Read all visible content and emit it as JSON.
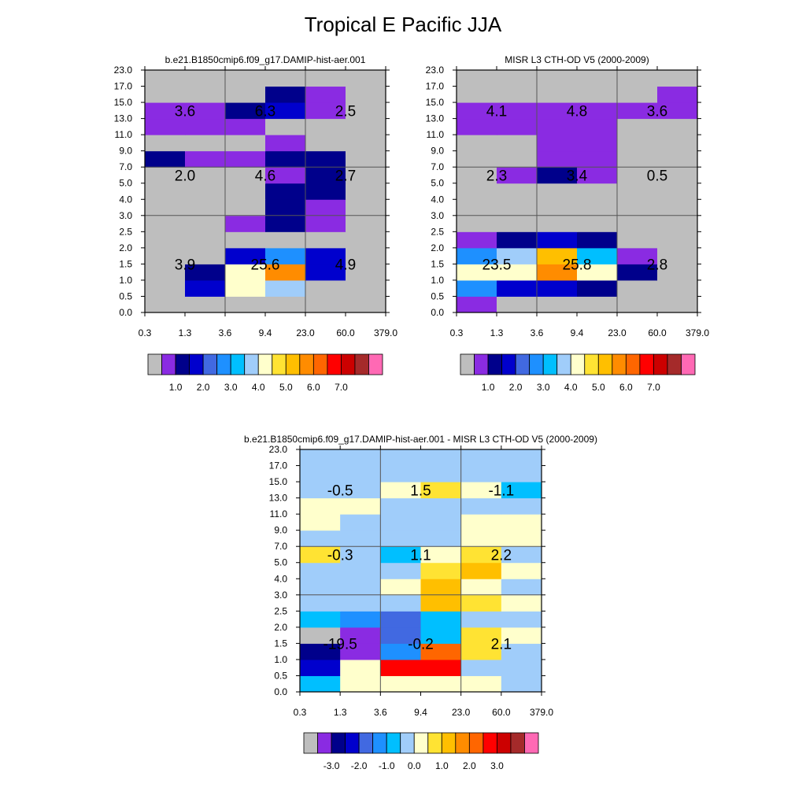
{
  "title": "Tropical E Pacific JJA",
  "palette": {
    "colors": [
      "#bebebe",
      "#8a2be2",
      "#00008b",
      "#0000cd",
      "#4169e1",
      "#1e90ff",
      "#00bfff",
      "#a0cdfa",
      "#ffffcc",
      "#ffe333",
      "#ffbf00",
      "#ff8c00",
      "#ff6600",
      "#ff0000",
      "#cc0000",
      "#a52a2a",
      "#ff69b4"
    ],
    "levels": [
      "0",
      "1",
      "2",
      "3",
      "4",
      "5",
      "6",
      "7",
      "8",
      "9",
      "10",
      "11",
      "12",
      "13",
      "14",
      "15",
      "16"
    ]
  },
  "chart_data": [
    {
      "type": "heatmap",
      "title": "b.e21.B1850cmip6.f09_g17.DAMIP-hist-aer.001",
      "x_ticks": [
        "0.3",
        "1.3",
        "3.6",
        "9.4",
        "23.0",
        "60.0",
        "379.0"
      ],
      "y_ticks": [
        "0.0",
        "0.5",
        "1.0",
        "1.5",
        "2.0",
        "2.5",
        "3.0",
        "4.0",
        "5.0",
        "7.0",
        "9.0",
        "11.0",
        "13.0",
        "15.0",
        "17.0",
        "23.0"
      ],
      "cell_color_index_rows_bottom_to_top": [
        [
          0,
          0,
          0,
          0,
          0,
          0
        ],
        [
          0,
          3,
          8,
          7,
          0,
          0
        ],
        [
          0,
          2,
          8,
          11,
          3,
          0
        ],
        [
          0,
          0,
          3,
          5,
          3,
          0
        ],
        [
          0,
          0,
          0,
          0,
          0,
          0
        ],
        [
          0,
          0,
          1,
          2,
          1,
          0
        ],
        [
          0,
          0,
          0,
          2,
          1,
          0
        ],
        [
          0,
          0,
          0,
          2,
          2,
          0
        ],
        [
          0,
          0,
          0,
          1,
          2,
          0
        ],
        [
          2,
          1,
          1,
          2,
          2,
          0
        ],
        [
          0,
          0,
          0,
          1,
          0,
          0
        ],
        [
          1,
          1,
          1,
          0,
          0,
          0
        ],
        [
          1,
          1,
          2,
          3,
          1,
          0
        ],
        [
          0,
          0,
          0,
          2,
          1,
          0
        ],
        [
          0,
          0,
          0,
          0,
          0,
          0
        ]
      ],
      "labels": [
        {
          "text": "3.6",
          "xi": 1,
          "yi": 12.5
        },
        {
          "text": "6.3",
          "xi": 3,
          "yi": 12.5
        },
        {
          "text": "2.5",
          "xi": 5,
          "yi": 12.5
        },
        {
          "text": "2.0",
          "xi": 1,
          "yi": 8.5
        },
        {
          "text": "4.6",
          "xi": 3,
          "yi": 8.5
        },
        {
          "text": "2.7",
          "xi": 5,
          "yi": 8.5
        },
        {
          "text": "3.9",
          "xi": 1,
          "yi": 3.0
        },
        {
          "text": "25.6",
          "xi": 3,
          "yi": 3.0
        },
        {
          "text": "4.9",
          "xi": 5,
          "yi": 3.0
        }
      ],
      "colorbar": {
        "tick_labels": [
          "1.0",
          "2.0",
          "3.0",
          "4.0",
          "5.0",
          "6.0",
          "7.0"
        ],
        "start_index": 2
      }
    },
    {
      "type": "heatmap",
      "title": "MISR L3 CTH-OD V5 (2000-2009)",
      "x_ticks": [
        "0.3",
        "1.3",
        "3.6",
        "9.4",
        "23.0",
        "60.0",
        "379.0"
      ],
      "y_ticks": [
        "0.0",
        "0.5",
        "1.0",
        "1.5",
        "2.0",
        "2.5",
        "3.0",
        "4.0",
        "5.0",
        "7.0",
        "9.0",
        "11.0",
        "13.0",
        "15.0",
        "17.0",
        "23.0"
      ],
      "cell_color_index_rows_bottom_to_top": [
        [
          1,
          0,
          0,
          0,
          0,
          0
        ],
        [
          5,
          3,
          3,
          2,
          0,
          0
        ],
        [
          8,
          8,
          11,
          8,
          2,
          0
        ],
        [
          5,
          7,
          10,
          6,
          1,
          0
        ],
        [
          1,
          2,
          3,
          2,
          0,
          0
        ],
        [
          0,
          0,
          0,
          0,
          0,
          0
        ],
        [
          0,
          0,
          0,
          0,
          0,
          0
        ],
        [
          0,
          0,
          0,
          0,
          0,
          0
        ],
        [
          0,
          1,
          2,
          1,
          0,
          0
        ],
        [
          0,
          0,
          1,
          1,
          0,
          0
        ],
        [
          0,
          0,
          1,
          1,
          0,
          0
        ],
        [
          1,
          1,
          1,
          1,
          0,
          0
        ],
        [
          1,
          1,
          1,
          1,
          1,
          1
        ],
        [
          0,
          0,
          0,
          0,
          0,
          1
        ],
        [
          0,
          0,
          0,
          0,
          0,
          0
        ]
      ],
      "labels": [
        {
          "text": "4.1",
          "xi": 1,
          "yi": 12.5
        },
        {
          "text": "4.8",
          "xi": 3,
          "yi": 12.5
        },
        {
          "text": "3.6",
          "xi": 5,
          "yi": 12.5
        },
        {
          "text": "2.3",
          "xi": 1,
          "yi": 8.5
        },
        {
          "text": "3.4",
          "xi": 3,
          "yi": 8.5
        },
        {
          "text": "0.5",
          "xi": 5,
          "yi": 8.5
        },
        {
          "text": "23.5",
          "xi": 1,
          "yi": 3.0
        },
        {
          "text": "25.8",
          "xi": 3,
          "yi": 3.0
        },
        {
          "text": "2.8",
          "xi": 5,
          "yi": 3.0
        }
      ],
      "colorbar": {
        "tick_labels": [
          "1.0",
          "2.0",
          "3.0",
          "4.0",
          "5.0",
          "6.0",
          "7.0"
        ],
        "start_index": 2
      }
    },
    {
      "type": "heatmap",
      "title": "b.e21.B1850cmip6.f09_g17.DAMIP-hist-aer.001 - MISR L3 CTH-OD V5 (2000-2009)",
      "x_ticks": [
        "0.3",
        "1.3",
        "3.6",
        "9.4",
        "23.0",
        "60.0",
        "379.0"
      ],
      "y_ticks": [
        "0.0",
        "0.5",
        "1.0",
        "1.5",
        "2.0",
        "2.5",
        "3.0",
        "4.0",
        "5.0",
        "7.0",
        "9.0",
        "11.0",
        "13.0",
        "15.0",
        "17.0",
        "23.0"
      ],
      "cell_color_index_rows_bottom_to_top": [
        [
          6,
          8,
          8,
          8,
          8,
          7
        ],
        [
          3,
          8,
          13,
          13,
          7,
          7
        ],
        [
          2,
          1,
          5,
          12,
          9,
          7
        ],
        [
          0,
          1,
          4,
          6,
          9,
          8
        ],
        [
          6,
          5,
          4,
          6,
          7,
          7
        ],
        [
          7,
          7,
          7,
          10,
          9,
          8
        ],
        [
          7,
          7,
          8,
          10,
          8,
          7
        ],
        [
          7,
          7,
          7,
          9,
          10,
          8
        ],
        [
          9,
          7,
          6,
          8,
          9,
          7
        ],
        [
          7,
          7,
          7,
          7,
          8,
          8
        ],
        [
          8,
          7,
          7,
          7,
          8,
          8
        ],
        [
          8,
          8,
          7,
          7,
          7,
          7
        ],
        [
          7,
          7,
          8,
          9,
          8,
          6
        ],
        [
          7,
          7,
          7,
          7,
          7,
          7
        ],
        [
          7,
          7,
          7,
          7,
          7,
          7
        ]
      ],
      "labels": [
        {
          "text": "-0.5",
          "xi": 1,
          "yi": 12.5
        },
        {
          "text": "1.5",
          "xi": 3,
          "yi": 12.5
        },
        {
          "text": "-1.1",
          "xi": 5,
          "yi": 12.5
        },
        {
          "text": "-0.3",
          "xi": 1,
          "yi": 8.5
        },
        {
          "text": "1.1",
          "xi": 3,
          "yi": 8.5
        },
        {
          "text": "2.2",
          "xi": 5,
          "yi": 8.5
        },
        {
          "text": "-19.5",
          "xi": 1,
          "yi": 3.0
        },
        {
          "text": "-0.2",
          "xi": 3,
          "yi": 3.0
        },
        {
          "text": "2.1",
          "xi": 5,
          "yi": 3.0
        }
      ],
      "colorbar": {
        "tick_labels": [
          "-3.0",
          "-2.0",
          "-1.0",
          "0.0",
          "1.0",
          "2.0",
          "3.0"
        ],
        "start_index": 2
      }
    }
  ]
}
